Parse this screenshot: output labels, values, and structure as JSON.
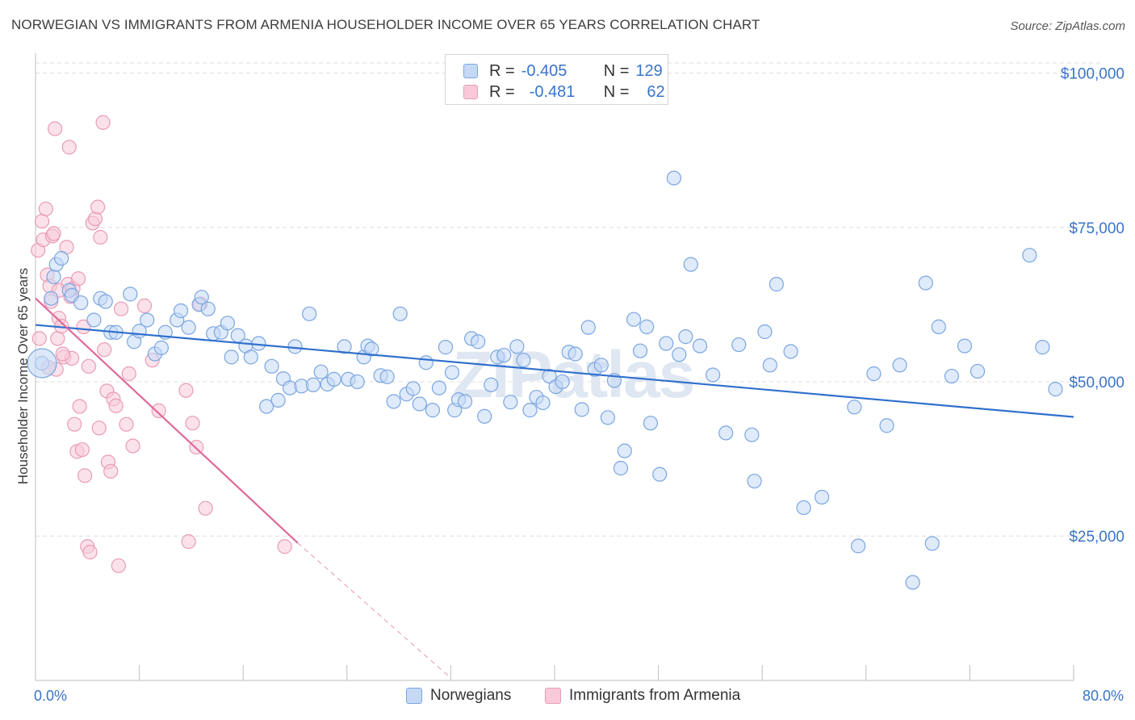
{
  "title": "NORWEGIAN VS IMMIGRANTS FROM ARMENIA HOUSEHOLDER INCOME OVER 65 YEARS CORRELATION CHART",
  "source": "Source: ZipAtlas.com",
  "watermark": "ZIPatlas",
  "colors": {
    "blue_fill": "#c5d9f5",
    "blue_stroke": "#7aa6e0",
    "blue_line": "#2f6fcc",
    "pink_fill": "#f8cad9",
    "pink_stroke": "#e99bb5",
    "pink_line": "#e0689a",
    "axis_label": "#3a74c9",
    "grid": "#dcdcdc"
  },
  "legend": {
    "rows": [
      {
        "r_label": "R =",
        "r_value": "-0.405",
        "n_label": "N =",
        "n_value": "129"
      },
      {
        "r_label": "R =",
        "r_value": "-0.481",
        "n_label": "N =",
        "n_value": "62"
      }
    ]
  },
  "chart_data": {
    "type": "scatter",
    "title": "NORWEGIAN VS IMMIGRANTS FROM ARMENIA HOUSEHOLDER INCOME OVER 65 YEARS CORRELATION CHART",
    "xlabel": "",
    "ylabel": "Householder Income Over 65 years",
    "xlim": [
      0,
      80
    ],
    "ylim": [
      2000,
      104000
    ],
    "x_tick_labels": [
      "0.0%",
      "80.0%"
    ],
    "y_ticks": [
      25000,
      50000,
      75000,
      100000
    ],
    "y_tick_labels": [
      "$25,000",
      "$50,000",
      "$75,000",
      "$100,000"
    ],
    "grid": true,
    "legend_position": "top-center",
    "series": [
      {
        "name": "Norwegians",
        "trend": {
          "x": [
            0.0,
            80.0
          ],
          "y": [
            59200,
            44300
          ]
        },
        "points": [
          [
            0.5,
            53000
          ],
          [
            1.2,
            63500
          ],
          [
            1.4,
            67000
          ],
          [
            1.6,
            69000
          ],
          [
            2.0,
            70000
          ],
          [
            2.6,
            64800
          ],
          [
            2.8,
            64000
          ],
          [
            3.5,
            62800
          ],
          [
            4.5,
            60000
          ],
          [
            5.0,
            63500
          ],
          [
            5.4,
            63000
          ],
          [
            5.8,
            58000
          ],
          [
            6.2,
            58000
          ],
          [
            7.3,
            64200
          ],
          [
            7.6,
            56500
          ],
          [
            8.0,
            58200
          ],
          [
            8.6,
            60000
          ],
          [
            9.2,
            54500
          ],
          [
            9.7,
            55500
          ],
          [
            10.0,
            58000
          ],
          [
            10.9,
            60000
          ],
          [
            11.2,
            61500
          ],
          [
            11.8,
            58800
          ],
          [
            12.6,
            62500
          ],
          [
            12.8,
            63700
          ],
          [
            13.3,
            61800
          ],
          [
            13.7,
            57800
          ],
          [
            14.3,
            58000
          ],
          [
            14.8,
            59500
          ],
          [
            15.1,
            54000
          ],
          [
            15.6,
            57500
          ],
          [
            16.2,
            55800
          ],
          [
            16.6,
            54000
          ],
          [
            17.2,
            56200
          ],
          [
            17.8,
            46000
          ],
          [
            18.2,
            52500
          ],
          [
            18.7,
            47000
          ],
          [
            19.1,
            50500
          ],
          [
            19.6,
            49000
          ],
          [
            20.0,
            55700
          ],
          [
            20.5,
            49300
          ],
          [
            21.1,
            61000
          ],
          [
            21.4,
            49500
          ],
          [
            22.0,
            51600
          ],
          [
            22.5,
            49600
          ],
          [
            23.0,
            50400
          ],
          [
            23.8,
            55700
          ],
          [
            24.1,
            50400
          ],
          [
            24.8,
            50000
          ],
          [
            25.3,
            54000
          ],
          [
            25.6,
            55800
          ],
          [
            25.9,
            55300
          ],
          [
            26.6,
            51000
          ],
          [
            27.1,
            50800
          ],
          [
            27.6,
            46800
          ],
          [
            28.1,
            61000
          ],
          [
            28.6,
            48000
          ],
          [
            29.1,
            48900
          ],
          [
            29.6,
            46400
          ],
          [
            30.1,
            53100
          ],
          [
            30.6,
            45400
          ],
          [
            31.1,
            49000
          ],
          [
            31.6,
            55600
          ],
          [
            32.1,
            51500
          ],
          [
            32.3,
            45400
          ],
          [
            32.6,
            47100
          ],
          [
            33.1,
            46800
          ],
          [
            33.6,
            57000
          ],
          [
            34.1,
            56500
          ],
          [
            34.6,
            44400
          ],
          [
            35.1,
            49500
          ],
          [
            35.6,
            54000
          ],
          [
            36.1,
            54300
          ],
          [
            36.6,
            46700
          ],
          [
            37.1,
            55700
          ],
          [
            37.6,
            53500
          ],
          [
            38.1,
            45400
          ],
          [
            38.6,
            47500
          ],
          [
            39.1,
            46600
          ],
          [
            39.6,
            50900
          ],
          [
            40.1,
            49200
          ],
          [
            40.6,
            50000
          ],
          [
            41.1,
            54800
          ],
          [
            41.6,
            54500
          ],
          [
            42.1,
            45500
          ],
          [
            42.6,
            58800
          ],
          [
            43.1,
            52000
          ],
          [
            43.6,
            52700
          ],
          [
            44.1,
            44200
          ],
          [
            44.6,
            50200
          ],
          [
            45.1,
            36000
          ],
          [
            45.4,
            38800
          ],
          [
            46.1,
            60100
          ],
          [
            46.6,
            55000
          ],
          [
            47.1,
            58900
          ],
          [
            47.4,
            43300
          ],
          [
            48.1,
            35000
          ],
          [
            48.6,
            56200
          ],
          [
            49.2,
            83000
          ],
          [
            49.6,
            54400
          ],
          [
            50.1,
            57300
          ],
          [
            50.5,
            69000
          ],
          [
            51.2,
            55800
          ],
          [
            52.2,
            51100
          ],
          [
            53.2,
            41700
          ],
          [
            54.2,
            56000
          ],
          [
            55.2,
            41400
          ],
          [
            55.4,
            33900
          ],
          [
            56.2,
            58100
          ],
          [
            56.6,
            52700
          ],
          [
            57.1,
            65800
          ],
          [
            58.2,
            54900
          ],
          [
            59.2,
            29600
          ],
          [
            60.6,
            31300
          ],
          [
            63.1,
            45900
          ],
          [
            63.4,
            23400
          ],
          [
            64.6,
            51300
          ],
          [
            65.6,
            42900
          ],
          [
            66.6,
            52700
          ],
          [
            67.6,
            17500
          ],
          [
            68.6,
            66000
          ],
          [
            69.1,
            23800
          ],
          [
            69.6,
            58900
          ],
          [
            70.6,
            50900
          ],
          [
            71.6,
            55800
          ],
          [
            72.6,
            51700
          ],
          [
            76.6,
            70500
          ],
          [
            77.6,
            55600
          ],
          [
            78.6,
            48800
          ]
        ]
      },
      {
        "name": "Immigrants from Armenia",
        "trend": {
          "x": [
            0.0,
            20.2
          ],
          "y": [
            63500,
            23900
          ],
          "dash_to": {
            "x": 32.0,
            "y": 2000
          }
        },
        "points": [
          [
            0.2,
            71300
          ],
          [
            0.3,
            57000
          ],
          [
            0.5,
            76000
          ],
          [
            0.6,
            73000
          ],
          [
            0.8,
            78000
          ],
          [
            0.9,
            67300
          ],
          [
            1.1,
            65500
          ],
          [
            1.2,
            63000
          ],
          [
            1.3,
            73600
          ],
          [
            1.4,
            74000
          ],
          [
            1.5,
            91000
          ],
          [
            1.6,
            52000
          ],
          [
            1.7,
            57000
          ],
          [
            1.8,
            60300
          ],
          [
            2.0,
            59000
          ],
          [
            2.2,
            54000
          ],
          [
            2.4,
            71800
          ],
          [
            2.5,
            65800
          ],
          [
            2.6,
            88000
          ],
          [
            2.7,
            63800
          ],
          [
            2.8,
            53800
          ],
          [
            3.0,
            43100
          ],
          [
            3.2,
            38700
          ],
          [
            3.4,
            46000
          ],
          [
            3.6,
            39000
          ],
          [
            3.8,
            34800
          ],
          [
            4.0,
            23300
          ],
          [
            4.2,
            22400
          ],
          [
            4.4,
            75700
          ],
          [
            4.6,
            76400
          ],
          [
            4.8,
            78300
          ],
          [
            5.0,
            73400
          ],
          [
            5.2,
            92000
          ],
          [
            5.3,
            55200
          ],
          [
            5.5,
            48500
          ],
          [
            5.6,
            37000
          ],
          [
            5.8,
            35500
          ],
          [
            6.0,
            47200
          ],
          [
            6.2,
            46100
          ],
          [
            6.4,
            20200
          ],
          [
            7.0,
            43100
          ],
          [
            7.5,
            39600
          ],
          [
            9.0,
            53500
          ],
          [
            9.5,
            45300
          ],
          [
            11.6,
            48600
          ],
          [
            11.8,
            24100
          ],
          [
            12.1,
            43300
          ],
          [
            12.4,
            39400
          ],
          [
            12.7,
            62600
          ],
          [
            13.1,
            29500
          ],
          [
            19.2,
            23300
          ],
          [
            1.0,
            52300
          ],
          [
            1.8,
            64800
          ],
          [
            2.1,
            54500
          ],
          [
            2.9,
            65100
          ],
          [
            3.3,
            66700
          ],
          [
            3.7,
            58900
          ],
          [
            4.1,
            52500
          ],
          [
            4.9,
            42500
          ],
          [
            6.6,
            61800
          ],
          [
            7.2,
            51300
          ],
          [
            8.4,
            62300
          ]
        ]
      }
    ]
  }
}
